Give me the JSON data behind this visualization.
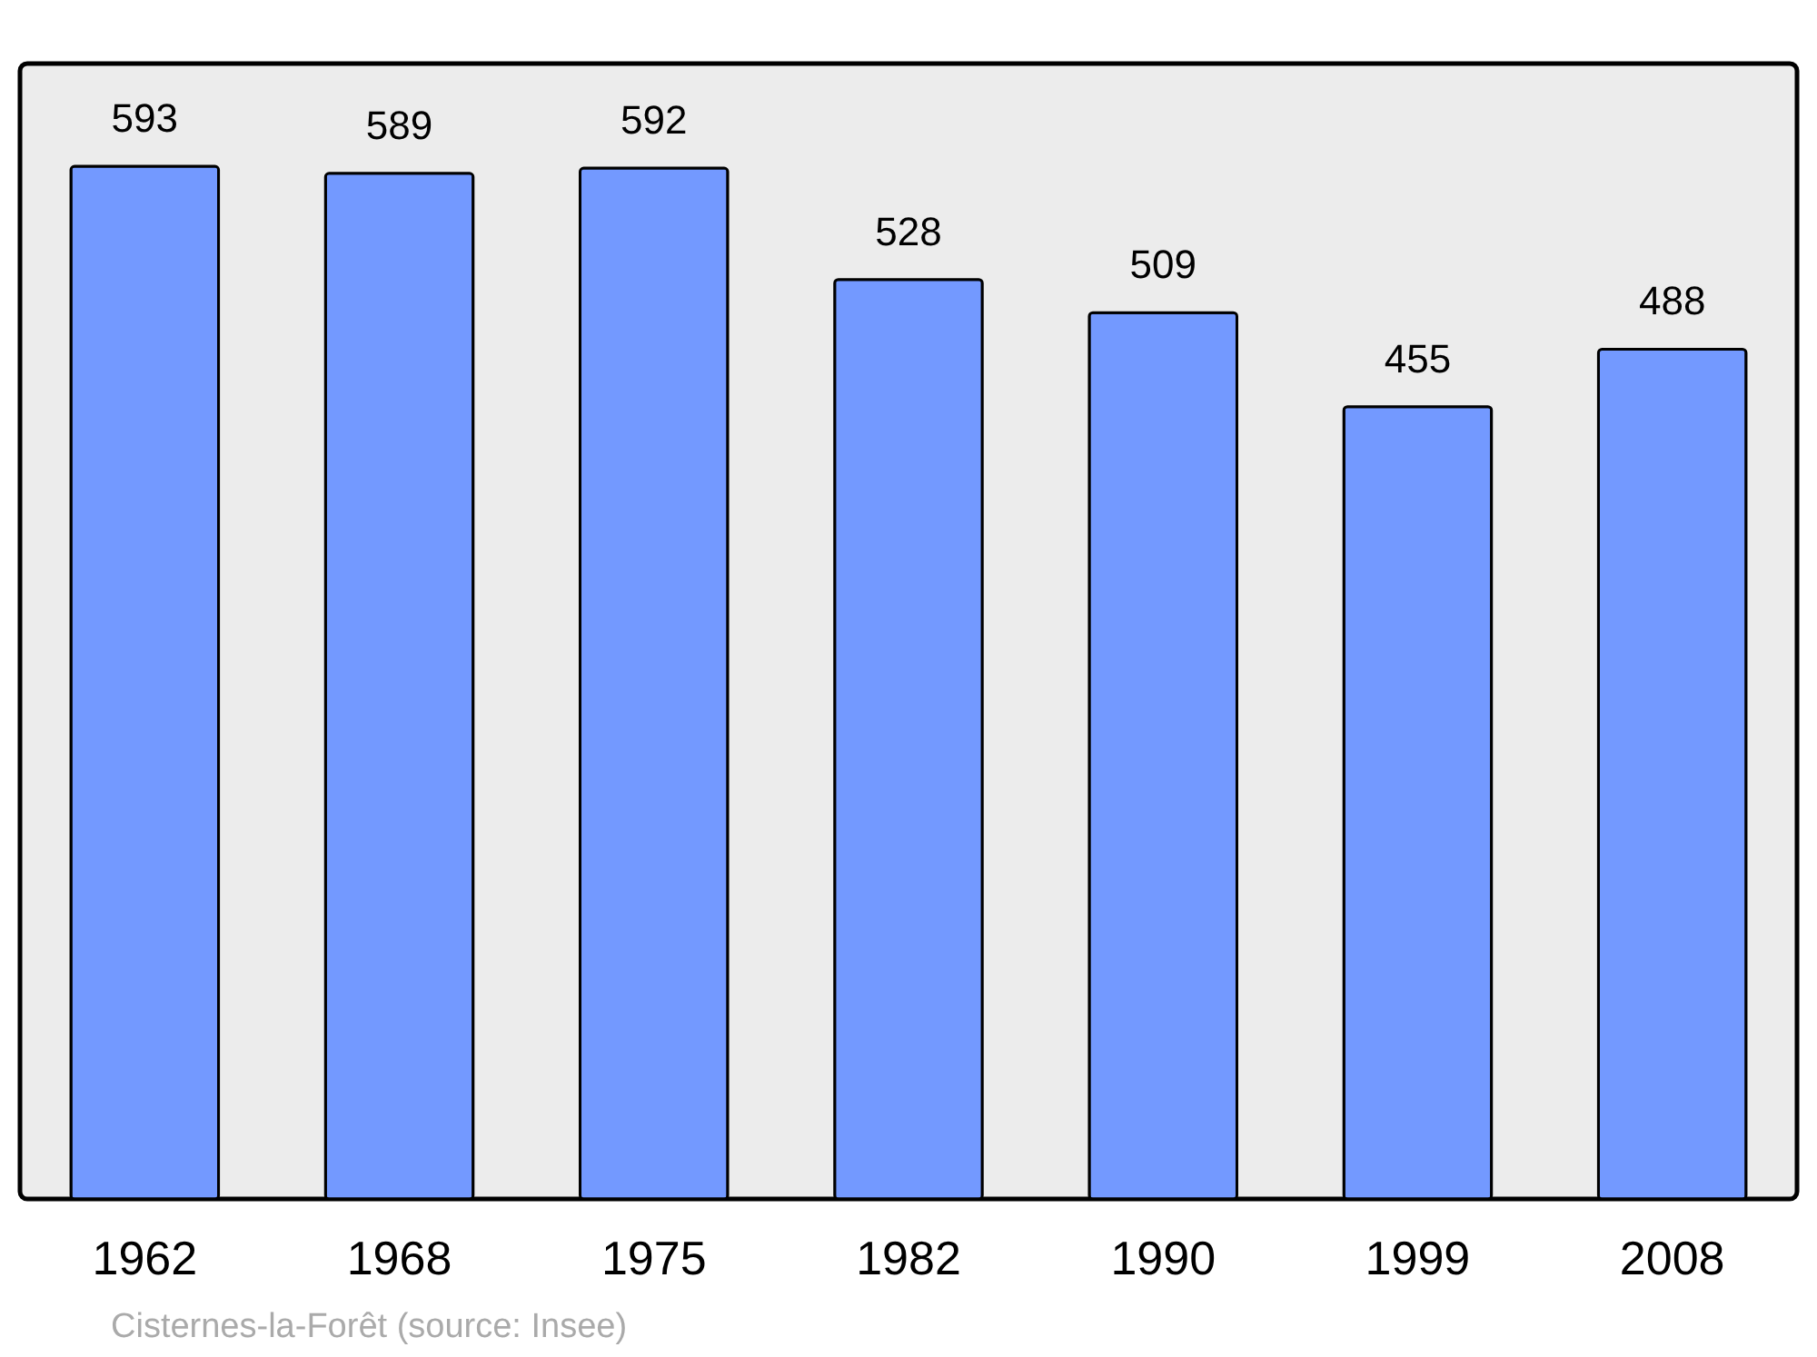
{
  "chart_data": {
    "type": "bar",
    "categories": [
      "1962",
      "1968",
      "1975",
      "1982",
      "1990",
      "1999",
      "2008"
    ],
    "values": [
      593,
      589,
      592,
      528,
      509,
      455,
      488
    ],
    "color": "#7399ff",
    "ylim": [
      0,
      652
    ],
    "data_labels": true,
    "tick_labels": "x",
    "grid": false,
    "annotations": [
      "Cisternes-la-Forêt    (source: Insee)"
    ]
  }
}
